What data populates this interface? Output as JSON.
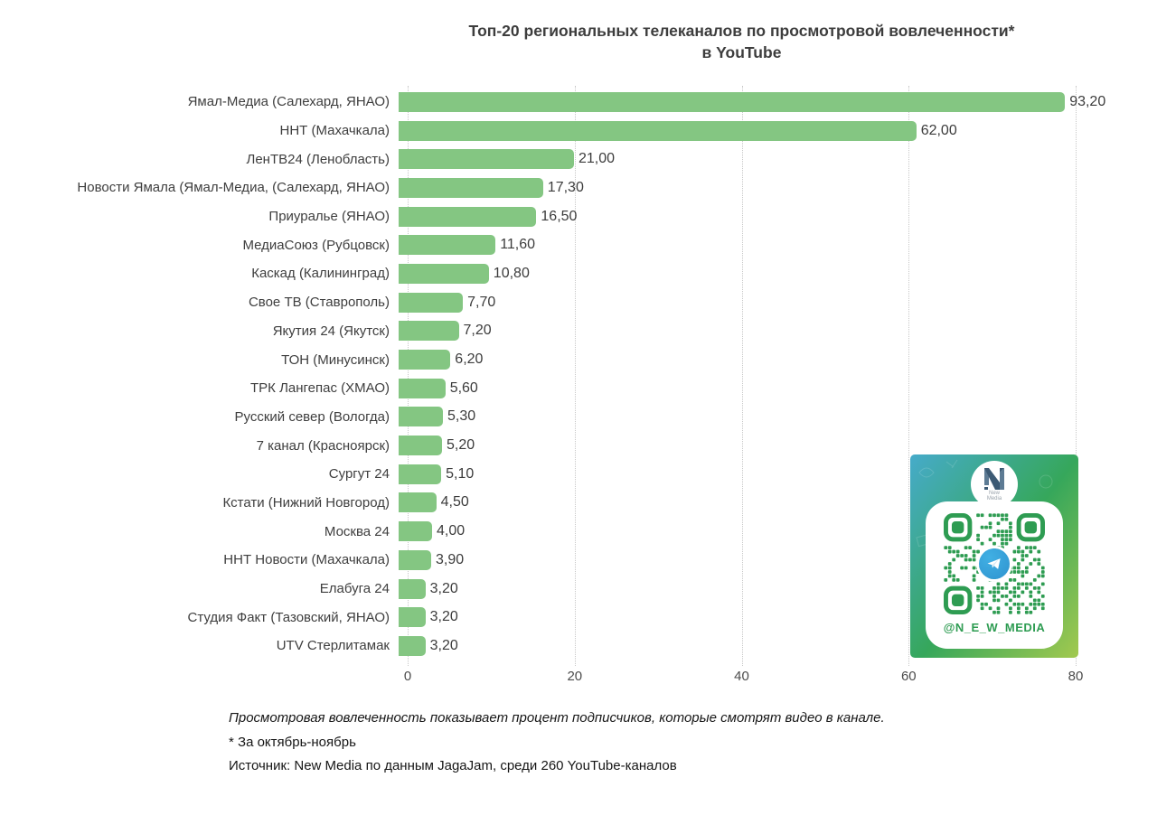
{
  "title": {
    "line1": "Топ-20 региональных телеканалов по просмотровой вовлеченности*",
    "line2": "в YouTube"
  },
  "chart_data": {
    "type": "bar",
    "orientation": "horizontal",
    "title": "Топ-20 региональных телеканалов по просмотровой вовлеченности* в YouTube",
    "categories": [
      "Ямал-Медиа (Салехард, ЯНАО)",
      "ННТ (Махачкала)",
      "ЛенТВ24 (Ленобласть)",
      "Новости Ямала (Ямал-Медиа, (Салехард, ЯНАО)",
      "Приуралье (ЯНАО)",
      "МедиаСоюз (Рубцовск)",
      "Каскад (Калининград)",
      "Свое ТВ (Ставрополь)",
      "Якутия 24 (Якутск)",
      "ТОН (Минусинск)",
      "ТРК Лангепас (ХМАО)",
      "Русский север (Вологда)",
      "7 канал (Красноярск)",
      "Сургут 24",
      "Кстати (Нижний Новгород)",
      "Москва 24",
      "ННТ Новости (Махачкала)",
      "Елабуга 24",
      "Студия Факт (Тазовский, ЯНАО)",
      "UTV Стерлитамак"
    ],
    "values": [
      93.2,
      62.0,
      21.0,
      17.3,
      16.5,
      11.6,
      10.8,
      7.7,
      7.2,
      6.2,
      5.6,
      5.3,
      5.2,
      5.1,
      4.5,
      4.0,
      3.9,
      3.2,
      3.2,
      3.2
    ],
    "value_labels": [
      "93,20",
      "62,00",
      "21,00",
      "17,30",
      "16,50",
      "11,60",
      "10,80",
      "7,70",
      "7,20",
      "6,20",
      "5,60",
      "5,30",
      "5,20",
      "5,10",
      "4,50",
      "4,00",
      "3,90",
      "3,20",
      "3,20",
      "3,20"
    ],
    "xlim": [
      0,
      80
    ],
    "x_ticks": [
      0,
      20,
      40,
      60,
      80
    ],
    "x_tick_labels": [
      "0",
      "20",
      "40",
      "60",
      "80"
    ],
    "bar_color": "#84C682",
    "grid": "vertical-dotted",
    "legend": "none"
  },
  "footnotes": {
    "line1": "Просмотровая вовлеченность показывает процент подписчиков, которые смотрят видео в канале.",
    "line2": "* За октябрь-ноябрь",
    "line3": "Источник: New Media по данным JagaJam, среди 260 YouTube-каналов"
  },
  "qr_card": {
    "handle": "@N_E_W_MEDIA",
    "logo_text": "New\nMedia",
    "colors": {
      "gradient_start": "#46abca",
      "gradient_mid": "#36a75b",
      "gradient_end": "#a2c94f",
      "qr_green": "#2E9C52",
      "telegram_blue": "#37AEE2"
    }
  }
}
